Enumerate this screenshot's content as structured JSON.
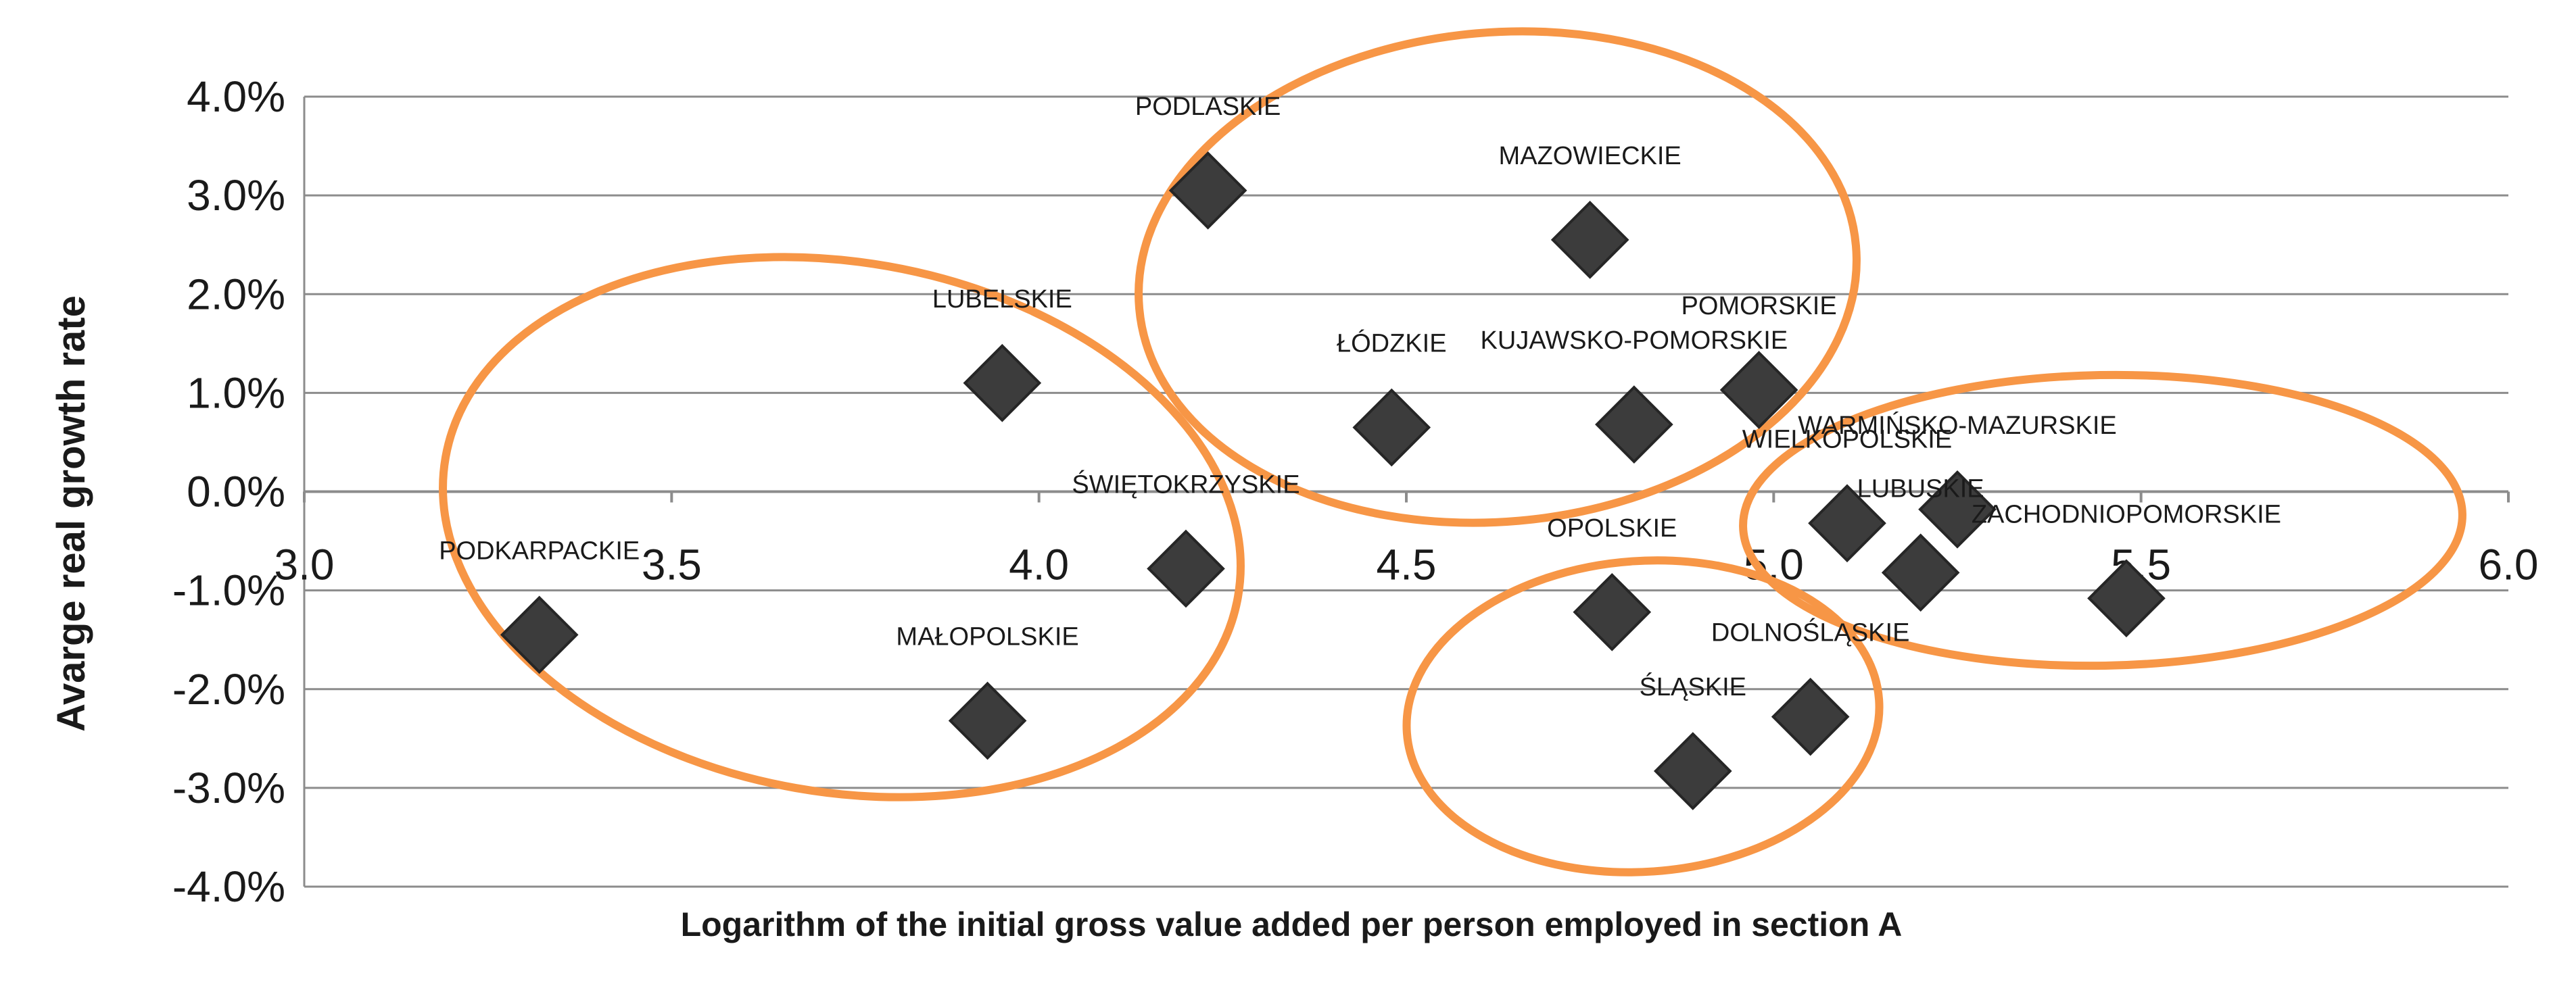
{
  "chart_data": {
    "type": "scatter",
    "title": "",
    "xlabel": "Logarithm of the initial gross value added per person employed in section A",
    "ylabel": "Avarge real growth rate",
    "xlim": [
      3.0,
      6.0
    ],
    "ylim": [
      -0.04,
      0.04
    ],
    "x_ticks": [
      3.0,
      3.5,
      4.0,
      4.5,
      5.0,
      5.5,
      6.0
    ],
    "x_tick_labels": [
      "3.0",
      "3.5",
      "4.0",
      "4.5",
      "5.0",
      "5.5",
      "6.0"
    ],
    "y_ticks": [
      0.04,
      0.03,
      0.02,
      0.01,
      0.0,
      -0.01,
      -0.02,
      -0.03,
      -0.04
    ],
    "y_tick_labels": [
      "4.0%",
      "3.0%",
      "2.0%",
      "1.0%",
      "0.0%",
      "-1.0%",
      "-2.0%",
      "-3.0%",
      "-4.0%"
    ],
    "grid": true,
    "marker_color": "#3c3c3c",
    "cluster_color": "#f79646",
    "points": [
      {
        "label": "PODKARPACKIE",
        "x": 3.32,
        "y": -0.0145
      },
      {
        "label": "MAŁOPOLSKIE",
        "x": 3.93,
        "y": -0.0232
      },
      {
        "label": "LUBELSKIE",
        "x": 3.95,
        "y": 0.011
      },
      {
        "label": "ŚWIĘTOKRZYSKIE",
        "x": 4.2,
        "y": -0.0078
      },
      {
        "label": "PODLASKIE",
        "x": 4.23,
        "y": 0.0305
      },
      {
        "label": "ŁÓDZKIE",
        "x": 4.48,
        "y": 0.0065
      },
      {
        "label": "MAZOWIECKIE",
        "x": 4.75,
        "y": 0.0255
      },
      {
        "label": "KUJAWSKO-POMORSKIE",
        "x": 4.81,
        "y": 0.0068
      },
      {
        "label": "OPOLSKIE",
        "x": 4.78,
        "y": -0.0122
      },
      {
        "label": "ŚLĄSKIE",
        "x": 4.89,
        "y": -0.0283
      },
      {
        "label": "POMORSKIE",
        "x": 4.98,
        "y": 0.0103
      },
      {
        "label": "DOLNOŚLĄSKIE",
        "x": 5.05,
        "y": -0.0228
      },
      {
        "label": "WIELKOPOLSKIE",
        "x": 5.1,
        "y": -0.0032
      },
      {
        "label": "LUBUSKIE",
        "x": 5.2,
        "y": -0.0082
      },
      {
        "label": "WARMIŃSKO-MAZURSKIE",
        "x": 5.25,
        "y": -0.0018
      },
      {
        "label": "ZACHODNIOPOMORSKIE",
        "x": 5.48,
        "y": -0.0108
      }
    ]
  }
}
